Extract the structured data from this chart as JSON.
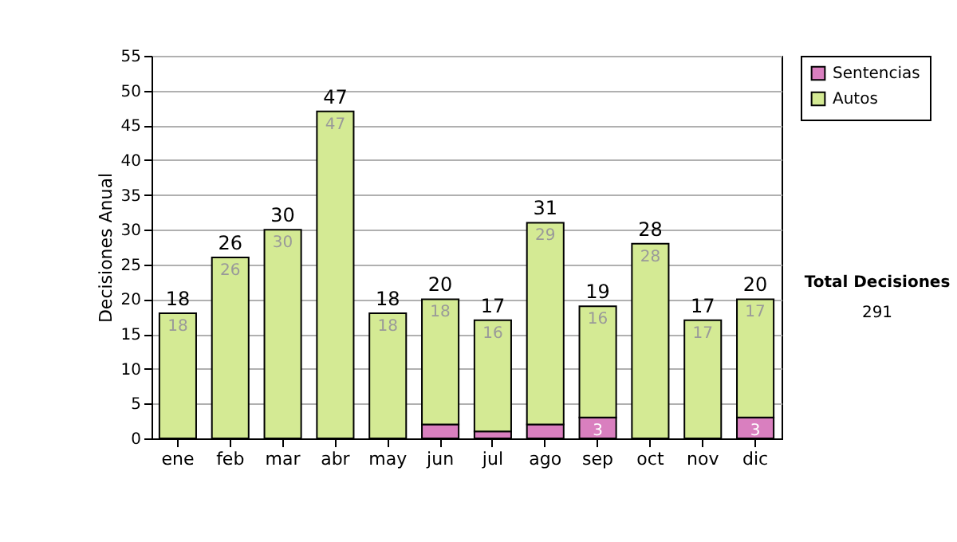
{
  "chart_data": {
    "type": "bar",
    "ylabel": "Decisiones Anual",
    "categories": [
      "ene",
      "feb",
      "mar",
      "abr",
      "may",
      "jun",
      "jul",
      "ago",
      "sep",
      "oct",
      "nov",
      "dic"
    ],
    "stacked": true,
    "series": [
      {
        "name": "Sentencias",
        "color": "#d97fbf",
        "values": [
          0,
          0,
          0,
          0,
          0,
          2,
          1,
          2,
          3,
          0,
          0,
          3
        ],
        "value_labels": [
          null,
          null,
          null,
          null,
          null,
          null,
          null,
          null,
          "3",
          null,
          null,
          "3"
        ]
      },
      {
        "name": "Autos",
        "color": "#d4ea94",
        "values": [
          18,
          26,
          30,
          47,
          18,
          18,
          16,
          29,
          16,
          28,
          17,
          17
        ],
        "value_labels": [
          "18",
          "26",
          "30",
          "47",
          "18",
          "18",
          "16",
          "29",
          "16",
          "28",
          "17",
          "17"
        ]
      }
    ],
    "totals": [
      "18",
      "26",
      "30",
      "47",
      "18",
      "20",
      "17",
      "31",
      "19",
      "28",
      "17",
      "20"
    ],
    "ylim": [
      0,
      55
    ],
    "yticks": [
      0,
      5,
      10,
      15,
      20,
      25,
      30,
      35,
      40,
      45,
      50,
      55
    ],
    "grid": "y",
    "legend": "right",
    "annotations": [
      "Total Decisiones",
      "291"
    ]
  }
}
